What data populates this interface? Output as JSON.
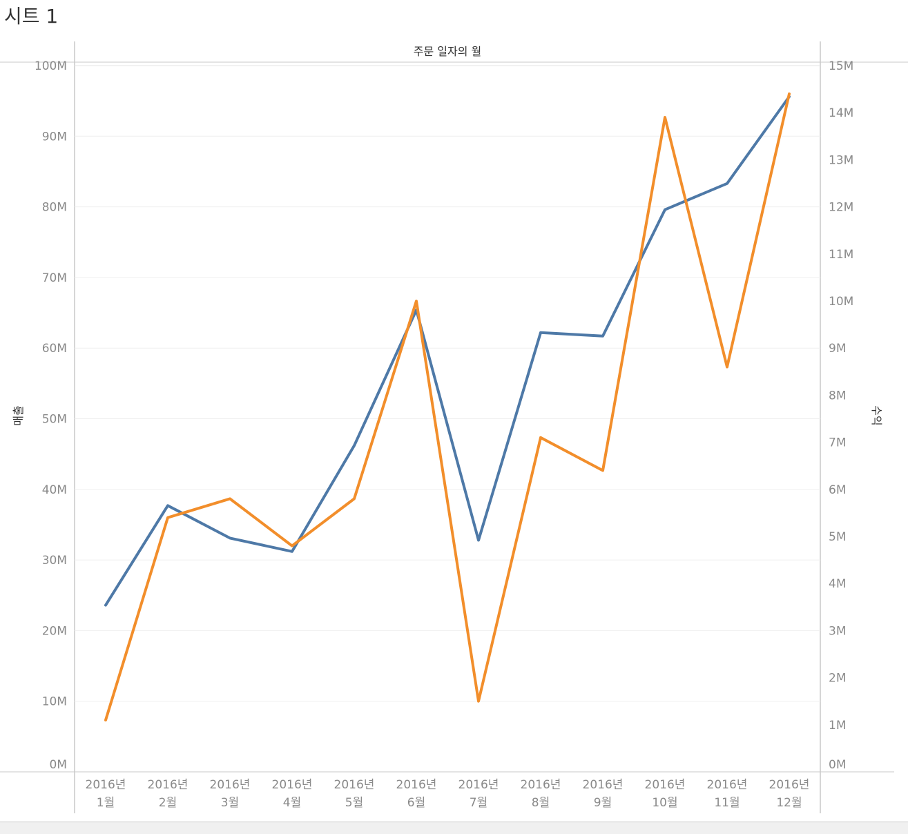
{
  "sheet": {
    "title": "시트 1"
  },
  "chart_data": {
    "type": "line",
    "header": "주문 일자의 월",
    "categories": [
      {
        "year": "2016년",
        "month": "1월"
      },
      {
        "year": "2016년",
        "month": "2월"
      },
      {
        "year": "2016년",
        "month": "3월"
      },
      {
        "year": "2016년",
        "month": "4월"
      },
      {
        "year": "2016년",
        "month": "5월"
      },
      {
        "year": "2016년",
        "month": "6월"
      },
      {
        "year": "2016년",
        "month": "7월"
      },
      {
        "year": "2016년",
        "month": "8월"
      },
      {
        "year": "2016년",
        "month": "9월"
      },
      {
        "year": "2016년",
        "month": "10월"
      },
      {
        "year": "2016년",
        "month": "11월"
      },
      {
        "year": "2016년",
        "month": "12월"
      }
    ],
    "left_axis": {
      "label": "매출",
      "ylim": [
        0,
        100000000
      ],
      "ticks": [
        "0M",
        "10M",
        "20M",
        "30M",
        "40M",
        "50M",
        "60M",
        "70M",
        "80M",
        "90M",
        "100M"
      ],
      "tick_values": [
        0,
        10000000,
        20000000,
        30000000,
        40000000,
        50000000,
        60000000,
        70000000,
        80000000,
        90000000,
        100000000
      ]
    },
    "right_axis": {
      "label": "수익",
      "ylim": [
        0,
        15000000
      ],
      "ticks": [
        "0M",
        "1M",
        "2M",
        "3M",
        "4M",
        "5M",
        "6M",
        "7M",
        "8M",
        "9M",
        "10M",
        "11M",
        "12M",
        "13M",
        "14M",
        "15M"
      ],
      "tick_values": [
        0,
        1000000,
        2000000,
        3000000,
        4000000,
        5000000,
        6000000,
        7000000,
        8000000,
        9000000,
        10000000,
        11000000,
        12000000,
        13000000,
        14000000,
        15000000
      ]
    },
    "series": [
      {
        "key": "sales",
        "axis": "left",
        "color": "#4e79a7",
        "values": [
          23600000,
          37700000,
          33100000,
          31200000,
          46200000,
          65400000,
          32800000,
          62200000,
          61700000,
          79600000,
          83300000,
          95600000
        ]
      },
      {
        "key": "profit",
        "axis": "right",
        "color": "#f28e2b",
        "values": [
          1100000,
          5400000,
          5800000,
          4800000,
          5800000,
          10000000,
          1500000,
          7100000,
          6400000,
          13900000,
          8600000,
          14400000
        ]
      }
    ],
    "grid": true
  }
}
